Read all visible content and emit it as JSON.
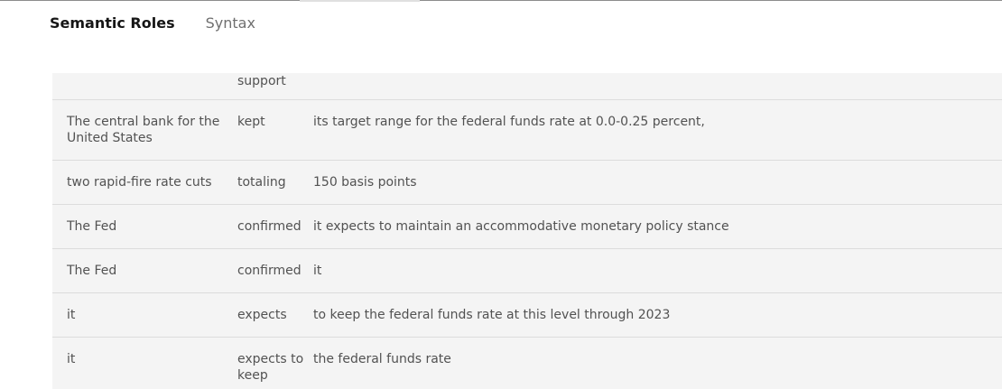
{
  "tabs": [
    {
      "label": "Semantic Roles",
      "active": true
    },
    {
      "label": "Syntax",
      "active": false
    }
  ],
  "roles_table": {
    "rows": [
      {
        "subject": "",
        "action": "support",
        "object": ""
      },
      {
        "subject": "The central bank for the United States",
        "action": "kept",
        "object": "its target range for the federal funds rate at 0.0-0.25 percent,"
      },
      {
        "subject": "two rapid-fire rate cuts",
        "action": "totaling",
        "object": "150 basis points"
      },
      {
        "subject": "The Fed",
        "action": "confirmed",
        "object": "it expects to maintain an accommodative monetary policy stance"
      },
      {
        "subject": "The Fed",
        "action": "confirmed",
        "object": "it"
      },
      {
        "subject": "it",
        "action": "expects",
        "object": "to keep the federal funds rate at this level through 2023"
      },
      {
        "subject": "it",
        "action": "expects to keep",
        "object": "the federal funds rate"
      }
    ]
  }
}
